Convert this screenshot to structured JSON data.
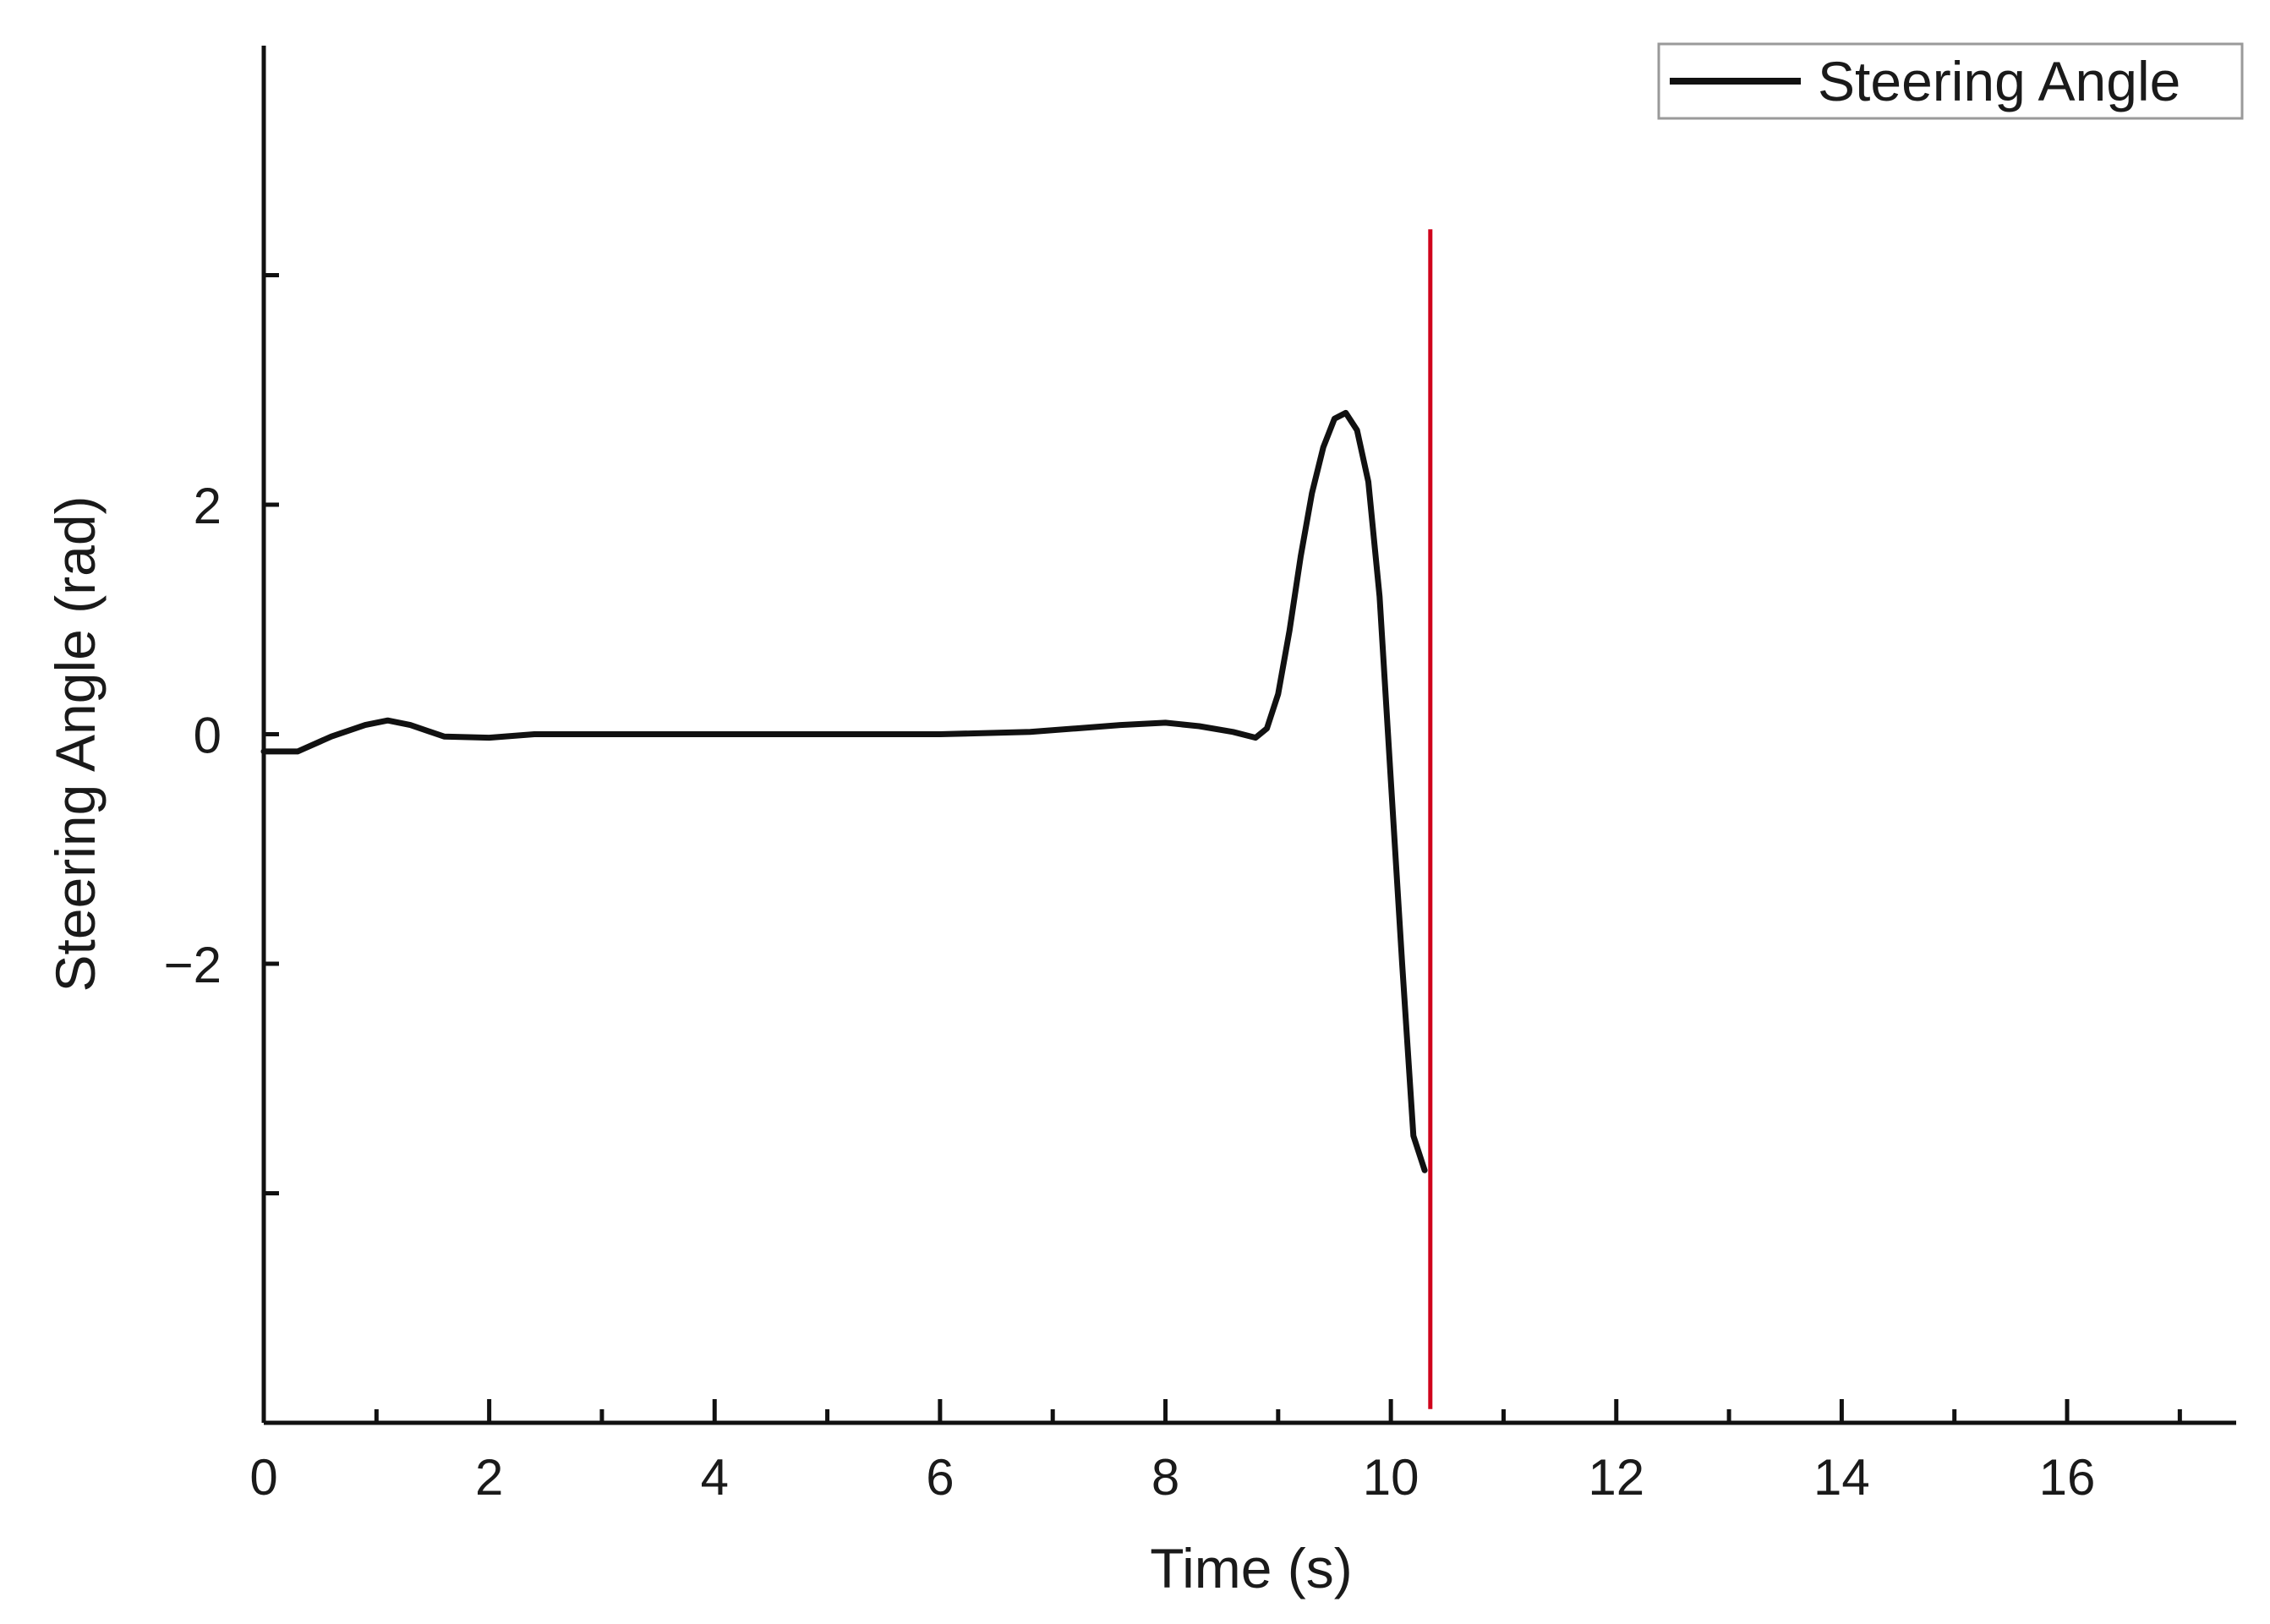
{
  "chart_data": {
    "type": "line",
    "title": "",
    "xlabel": "Time (s)",
    "ylabel": "Steering Angle (rad)",
    "xlim": [
      0,
      17.5
    ],
    "ylim": [
      -6,
      6
    ],
    "x_ticks": [
      0,
      2,
      4,
      6,
      8,
      10,
      12,
      14,
      16
    ],
    "x_minor_ticks": [
      1,
      3,
      5,
      7,
      9,
      11,
      13,
      15,
      17
    ],
    "y_ticks": [
      -2,
      0,
      2
    ],
    "y_minor_ticks": [
      -4,
      4
    ],
    "grid": false,
    "legend_position": "top-right",
    "colors": {
      "series": "#111111",
      "marker_line": "#d0021b",
      "axis": "#111111",
      "legend_border": "#9a9a9a"
    },
    "series": [
      {
        "name": "Steering Angle",
        "x": [
          0,
          0.3,
          0.6,
          0.9,
          1.1,
          1.3,
          1.6,
          2.0,
          2.4,
          3,
          4,
          5,
          6,
          6.8,
          7.2,
          7.6,
          8.0,
          8.3,
          8.6,
          8.8,
          8.9,
          9.0,
          9.1,
          9.2,
          9.3,
          9.4,
          9.5,
          9.6,
          9.7,
          9.8,
          9.9,
          10.0,
          10.1,
          10.2,
          10.3
        ],
        "y": [
          -0.15,
          -0.15,
          -0.02,
          0.08,
          0.12,
          0.08,
          -0.02,
          -0.03,
          0.0,
          0.0,
          0.0,
          0.0,
          0.0,
          0.02,
          0.05,
          0.08,
          0.1,
          0.07,
          0.02,
          -0.03,
          0.05,
          0.35,
          0.9,
          1.55,
          2.1,
          2.5,
          2.75,
          2.8,
          2.65,
          2.2,
          1.2,
          -0.4,
          -2.0,
          -3.5,
          -3.8
        ]
      }
    ],
    "annotations": [
      {
        "type": "vertical-line",
        "x": 10.35,
        "y_from": -5.88,
        "y_to": 4.4
      }
    ]
  }
}
